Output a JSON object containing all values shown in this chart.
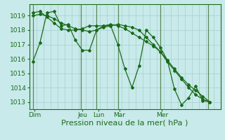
{
  "bg_color": "#c8eaea",
  "line_color": "#1a6b1a",
  "grid_color": "#a8cece",
  "vline_color": "#5a8a5a",
  "xlabel": "Pression niveau de la mer( hPa )",
  "xlabel_fontsize": 8,
  "tick_fontsize": 6.5,
  "yticks": [
    1013,
    1014,
    1015,
    1016,
    1017,
    1018,
    1019
  ],
  "ylim": [
    1012.5,
    1019.8
  ],
  "xlim": [
    0,
    108
  ],
  "xtick_positions": [
    3,
    30,
    39,
    51,
    75,
    102
  ],
  "xtick_labels": [
    "Dim",
    "Jeu",
    "Lun",
    "Mar",
    "Mer",
    ""
  ],
  "vline_positions": [
    2,
    29,
    38,
    50,
    74,
    101
  ],
  "series": [
    {
      "x": [
        2,
        6,
        10,
        14,
        18,
        22,
        26,
        30,
        34,
        38,
        42,
        46,
        50,
        54,
        58,
        62,
        66,
        70,
        74,
        78,
        82,
        86,
        90,
        94,
        98,
        102
      ],
      "y": [
        1015.8,
        1017.1,
        1019.2,
        1019.3,
        1018.3,
        1018.4,
        1017.3,
        1016.6,
        1016.6,
        1018.0,
        1018.3,
        1018.3,
        1017.0,
        1015.3,
        1014.0,
        1015.5,
        1018.0,
        1017.5,
        1016.8,
        1015.9,
        1013.9,
        1012.8,
        1013.3,
        1014.1,
        1013.1,
        1013.0
      ]
    },
    {
      "x": [
        2,
        6,
        10,
        14,
        18,
        22,
        26,
        30,
        34,
        38,
        42,
        46,
        50,
        54,
        58,
        62,
        66,
        70,
        74,
        78,
        82,
        86,
        90,
        94,
        98,
        102
      ],
      "y": [
        1019.2,
        1019.3,
        1018.9,
        1018.5,
        1018.1,
        1018.0,
        1018.0,
        1018.1,
        1018.3,
        1018.3,
        1018.3,
        1018.4,
        1018.3,
        1018.1,
        1017.8,
        1017.5,
        1017.2,
        1016.9,
        1016.5,
        1015.9,
        1015.3,
        1014.7,
        1014.2,
        1013.8,
        1013.4,
        1013.0
      ]
    },
    {
      "x": [
        2,
        6,
        10,
        14,
        18,
        22,
        26,
        30,
        34,
        38,
        42,
        46,
        50,
        54,
        58,
        62,
        66,
        70,
        74,
        78,
        82,
        86,
        90,
        94,
        98,
        102
      ],
      "y": [
        1019.0,
        1019.1,
        1019.0,
        1018.8,
        1018.5,
        1018.3,
        1018.1,
        1018.0,
        1017.9,
        1018.0,
        1018.2,
        1018.3,
        1018.4,
        1018.3,
        1018.2,
        1018.0,
        1017.5,
        1017.0,
        1016.5,
        1015.8,
        1015.2,
        1014.6,
        1014.0,
        1013.5,
        1013.2,
        1013.0
      ]
    }
  ]
}
